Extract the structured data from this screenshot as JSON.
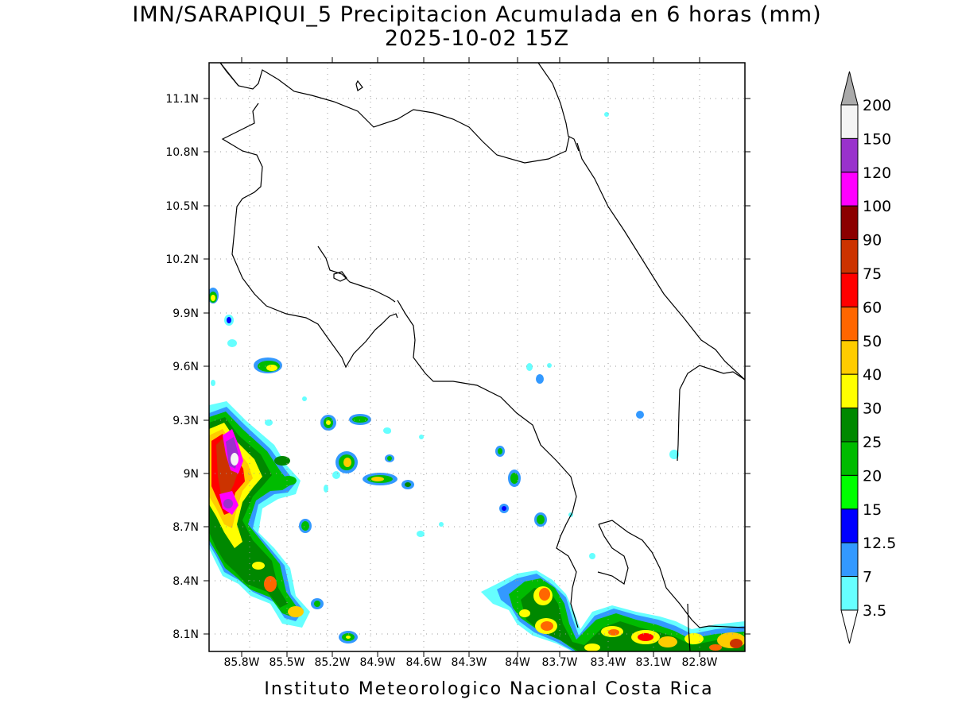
{
  "title": {
    "line1": "IMN/SARAPIQUI_5 Precipitacion Acumulada en 6 horas (mm)",
    "line2": "2025-10-02 15Z"
  },
  "footer": "Instituto Meteorologico Nacional Costa Rica",
  "map": {
    "lat_ticks": [
      "11.1N",
      "10.8N",
      "10.5N",
      "10.2N",
      "9.9N",
      "9.6N",
      "9.3N",
      "9N",
      "8.7N",
      "8.4N",
      "8.1N"
    ],
    "lon_ticks": [
      "85.8W",
      "85.5W",
      "85.2W",
      "84.9W",
      "84.6W",
      "84.3W",
      "84W",
      "83.7W",
      "83.4W",
      "83.1W",
      "82.8W"
    ],
    "grid": true
  },
  "colorbar": {
    "labels": [
      "200",
      "150",
      "120",
      "100",
      "90",
      "75",
      "60",
      "50",
      "40",
      "30",
      "25",
      "20",
      "15",
      "12.5",
      "7",
      "3.5"
    ],
    "colors": [
      "#aaaaaa",
      "#f4f4f4",
      "#9932cc",
      "#ff00ff",
      "#8b0000",
      "#cc3300",
      "#ff0000",
      "#ff6600",
      "#ffcc00",
      "#ffff00",
      "#008800",
      "#00bb00",
      "#00ff00",
      "#0000ff",
      "#3399ff",
      "#66ffff"
    ]
  }
}
